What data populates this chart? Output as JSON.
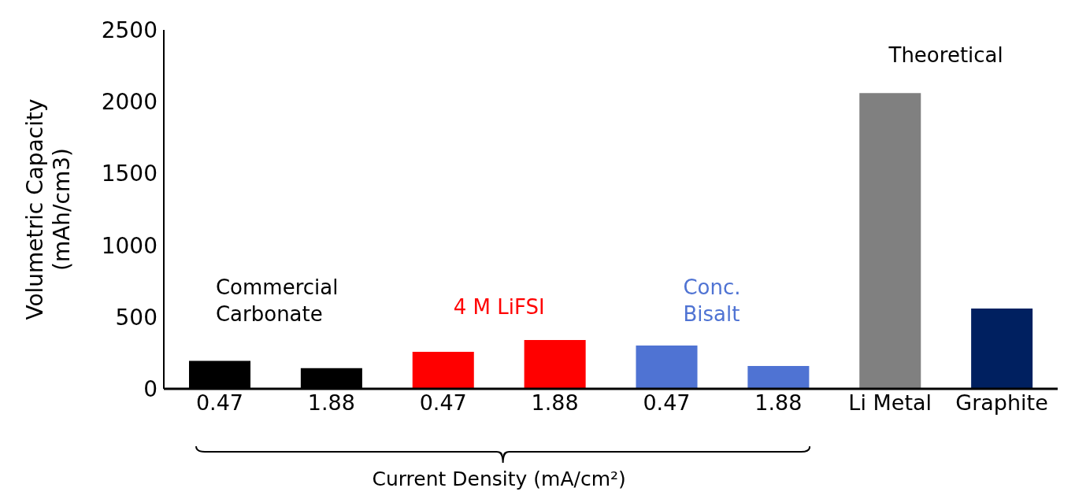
{
  "chart_data": {
    "type": "bar",
    "ylabel": "Volumetric Capacity (mAh/cm3)",
    "xlabel": "Current Density (mA/cm²)",
    "categories": [
      "0.47",
      "1.88",
      "0.47",
      "1.88",
      "0.47",
      "1.88",
      "Li Metal",
      "Graphite"
    ],
    "values": [
      195,
      144,
      258,
      340,
      302,
      159,
      2060,
      559
    ],
    "colors": [
      "#000000",
      "#000000",
      "#ff0000",
      "#ff0000",
      "#4f73d3",
      "#4f73d3",
      "#808080",
      "#002060"
    ],
    "ylim": [
      0,
      2500
    ],
    "yticks": [
      0,
      500,
      1000,
      1500,
      2000,
      2500
    ],
    "grid": false,
    "legend": false,
    "annotations": [
      "Commercial Carbonate",
      "4 M LiFSI",
      "Conc. Bisalt",
      "Theoretical"
    ]
  }
}
